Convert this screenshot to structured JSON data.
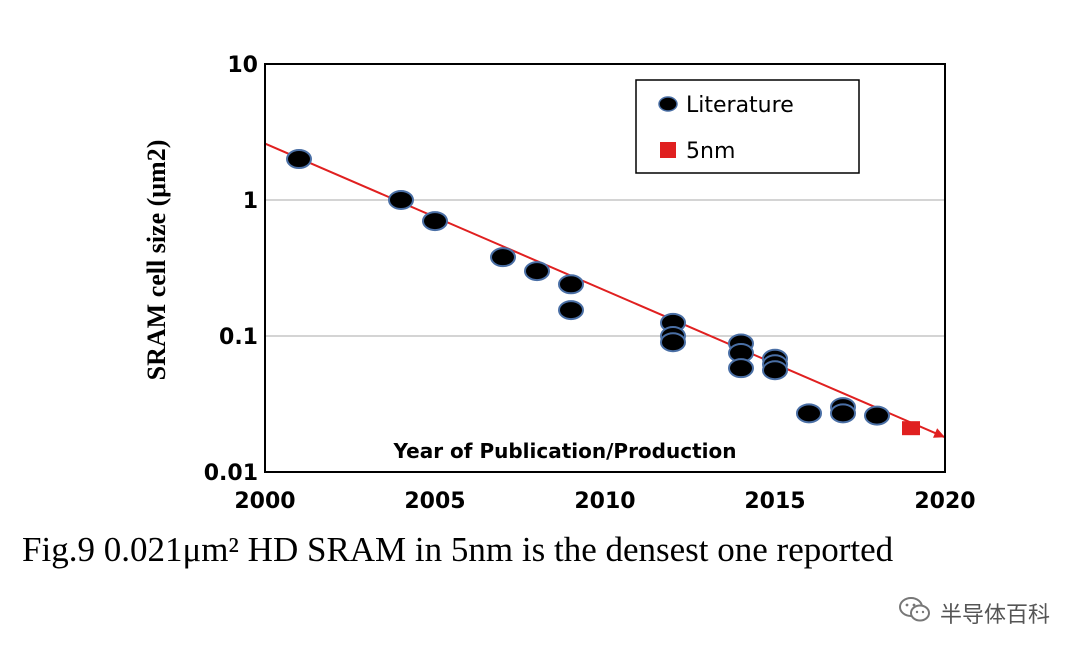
{
  "chart_data": {
    "type": "scatter",
    "xlabel": "Year of Publication/Production",
    "ylabel": "SRAM cell size  (μm2)",
    "xlim": [
      2000,
      2020
    ],
    "ylim": [
      0.01,
      10
    ],
    "yscale": "log",
    "x_ticks": [
      "2000",
      "2005",
      "2010",
      "2015",
      "2020"
    ],
    "y_ticks": [
      "10",
      "1",
      "0.1",
      "0.01"
    ],
    "grid": "horizontal",
    "legend_position": "top-right",
    "series": [
      {
        "name": "Literature",
        "marker": "circle",
        "color": "#000000",
        "points": [
          [
            2001,
            2.0
          ],
          [
            2004,
            1.0
          ],
          [
            2005,
            0.7
          ],
          [
            2007,
            0.38
          ],
          [
            2008,
            0.3
          ],
          [
            2009,
            0.24
          ],
          [
            2009,
            0.155
          ],
          [
            2012,
            0.125
          ],
          [
            2012,
            0.1
          ],
          [
            2012,
            0.09
          ],
          [
            2014,
            0.088
          ],
          [
            2014,
            0.075
          ],
          [
            2014,
            0.058
          ],
          [
            2015,
            0.068
          ],
          [
            2015,
            0.062
          ],
          [
            2015,
            0.056
          ],
          [
            2016,
            0.027
          ],
          [
            2017,
            0.03
          ],
          [
            2017,
            0.027
          ],
          [
            2018,
            0.026
          ]
        ]
      },
      {
        "name": "5nm",
        "marker": "square",
        "color": "#e02020",
        "points": [
          [
            2019,
            0.021
          ]
        ]
      }
    ],
    "trend_line": {
      "color": "#e02020",
      "from": [
        2000,
        2.6
      ],
      "to": [
        2020,
        0.018
      ]
    }
  },
  "caption": "Fig.9 0.021μm² HD SRAM in 5nm is the densest one reported",
  "watermark": {
    "text": "半导体百科",
    "icon": "wechat-icon"
  }
}
